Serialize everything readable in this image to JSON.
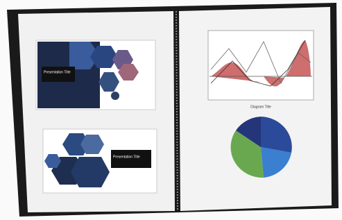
{
  "left_page": {
    "slides": [
      {
        "title": "Presentation Title"
      },
      {
        "title": "Presentation Title"
      }
    ]
  },
  "right_page": {
    "chart_caption": "Diagram Title"
  }
}
